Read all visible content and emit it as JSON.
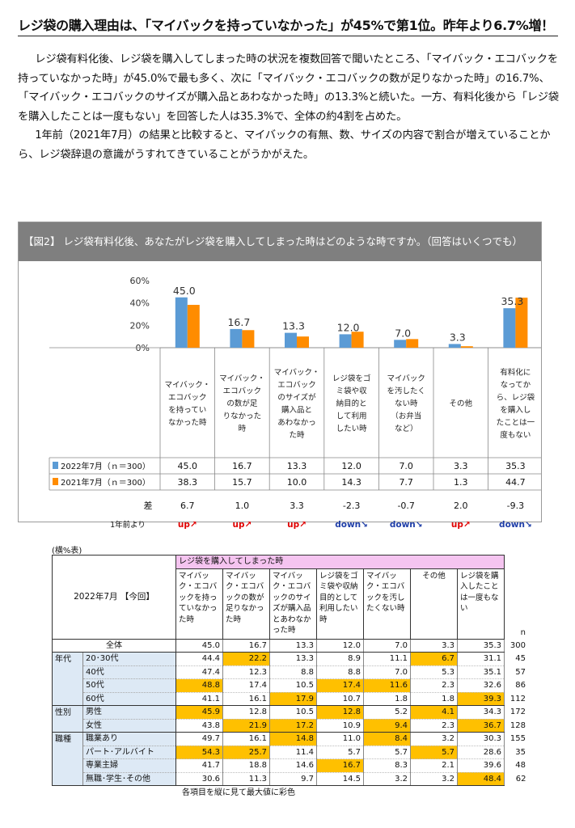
{
  "headline": "レジ袋の購入理由は、「マイバックを持っていなかった」が45%で第1位。昨年より6.7%増！",
  "paragraphs": [
    "レジ袋有料化後、レジ袋を購入してしまった時の状況を複数回答で聞いたところ、「マイバック・エコバックを持っていなかった時」が45.0%で最も多く、次に「マイバック・エコバックの数が足りなかった時」の16.7%、「マイバック・エコバックのサイズが購入品とあわなかった時」の13.3%と続いた。一方、有料化後から「レジ袋を購入したことは一度もない」を回答した人は35.3%で、全体の約4割を占めた。",
    "1年前（2021年7月）の結果と比較すると、マイバックの有無、数、サイズの内容で割合が増えていることから、レジ袋辞退の意識がうすれてきていることがうかがえた。"
  ],
  "figure": {
    "title": "【図2】 レジ袋有料化後、あなたがレジ袋を購入してしまった時はどのような時ですか。（回答はいくつでも）",
    "diff_label": "差",
    "trend_label": "1年前より",
    "colors": {
      "series_2022": "#5b9bd5",
      "series_2021": "#ff8c00",
      "up": "#e00000",
      "down": "#1f3ea8"
    }
  },
  "chart_data": {
    "type": "bar",
    "categories": [
      [
        "マイバック・",
        "エコバック",
        "を持ってい",
        "なかった時"
      ],
      [
        "マイバック・",
        "エコバック",
        "の数が足",
        "りなかった",
        "時"
      ],
      [
        "マイバック・",
        "エコバック",
        "のサイズが",
        "購入品と",
        "あわなかっ",
        "た時"
      ],
      [
        "レジ袋をゴ",
        "ミ袋や収",
        "納目的と",
        "して利用",
        "したい時"
      ],
      [
        "マイバック",
        "を汚したく",
        "ない時",
        "（お弁当",
        "など）"
      ],
      [
        "その他"
      ],
      [
        "有料化に",
        "なってか",
        "ら、レジ袋",
        "を購入し",
        "たことは一",
        "度もない"
      ]
    ],
    "series": [
      {
        "name": "2022年7月（ｎ＝300）",
        "values": [
          45.0,
          16.7,
          13.3,
          12.0,
          7.0,
          3.3,
          35.3
        ]
      },
      {
        "name": "2021年7月（ｎ＝300）",
        "values": [
          38.3,
          15.7,
          10.0,
          14.3,
          7.7,
          1.3,
          44.7
        ]
      }
    ],
    "value_labels": [
      "45.0",
      "16.7",
      "13.3",
      "12.0",
      "7.0",
      "3.3",
      "35.3"
    ],
    "diff": [
      "6.7",
      "1.0",
      "3.3",
      "-2.3",
      "-0.7",
      "2.0",
      "-9.3"
    ],
    "trend": [
      "up↗",
      "up↗",
      "up↗",
      "down↘",
      "down↘",
      "up↗",
      "down↘"
    ],
    "yticks": [
      "0%",
      "20%",
      "40%",
      "60%"
    ],
    "ylim": [
      0,
      60
    ]
  },
  "table": {
    "unit_label": "(横%表)",
    "corner": "2022年7月\n【今回】",
    "group_header": "レジ袋を購入してしまった時",
    "n_header": "n",
    "columns": [
      "マイバック・エコバックを持っていなかった時",
      "マイバック・エコバックの数が足りなかった時",
      "マイバック・エコバックのサイズが購入品とあわなかった時",
      "レジ袋をゴミ袋や収納目的として利用したい時",
      "マイバック・エコバックを汚したくない時",
      "その他",
      "レジ袋を購入したことは一度もない"
    ],
    "total": {
      "label": "全体",
      "values": [
        "45.0",
        "16.7",
        "13.3",
        "12.0",
        "7.0",
        "3.3",
        "35.3"
      ],
      "n": "300"
    },
    "groups": [
      {
        "name": "年代",
        "rows": [
          {
            "label": "20･30代",
            "values": [
              "44.4",
              "22.2",
              "13.3",
              "8.9",
              "11.1",
              "6.7",
              "31.1"
            ],
            "n": "45",
            "hl": [
              1,
              5
            ]
          },
          {
            "label": "40代",
            "values": [
              "47.4",
              "12.3",
              "8.8",
              "8.8",
              "7.0",
              "5.3",
              "35.1"
            ],
            "n": "57",
            "hl": []
          },
          {
            "label": "50代",
            "values": [
              "48.8",
              "17.4",
              "10.5",
              "17.4",
              "11.6",
              "2.3",
              "32.6"
            ],
            "n": "86",
            "hl": [
              0,
              3,
              4
            ]
          },
          {
            "label": "60代",
            "values": [
              "41.1",
              "16.1",
              "17.9",
              "10.7",
              "1.8",
              "1.8",
              "39.3"
            ],
            "n": "112",
            "hl": [
              2,
              6
            ]
          }
        ]
      },
      {
        "name": "性別",
        "rows": [
          {
            "label": "男性",
            "values": [
              "45.9",
              "12.8",
              "10.5",
              "12.8",
              "5.2",
              "4.1",
              "34.3"
            ],
            "n": "172",
            "hl": [
              0,
              3,
              5
            ]
          },
          {
            "label": "女性",
            "values": [
              "43.8",
              "21.9",
              "17.2",
              "10.9",
              "9.4",
              "2.3",
              "36.7"
            ],
            "n": "128",
            "hl": [
              1,
              2,
              4,
              6
            ]
          }
        ]
      },
      {
        "name": "職種",
        "rows": [
          {
            "label": "職業あり",
            "values": [
              "49.7",
              "16.1",
              "14.8",
              "11.0",
              "8.4",
              "3.2",
              "30.3"
            ],
            "n": "155",
            "hl": [
              2,
              4
            ]
          },
          {
            "label": "パート･アルバイト",
            "values": [
              "54.3",
              "25.7",
              "11.4",
              "5.7",
              "5.7",
              "5.7",
              "28.6"
            ],
            "n": "35",
            "hl": [
              0,
              1,
              5
            ]
          },
          {
            "label": "専業主婦",
            "values": [
              "41.7",
              "18.8",
              "14.6",
              "16.7",
              "8.3",
              "2.1",
              "39.6"
            ],
            "n": "48",
            "hl": [
              3
            ]
          },
          {
            "label": "無職･学生･その他",
            "values": [
              "30.6",
              "11.3",
              "9.7",
              "14.5",
              "3.2",
              "3.2",
              "48.4"
            ],
            "n": "62",
            "hl": [
              6
            ]
          }
        ]
      }
    ],
    "note": "各項目を縦に見て最大値に彩色",
    "highlight_color": "#ffc000"
  }
}
